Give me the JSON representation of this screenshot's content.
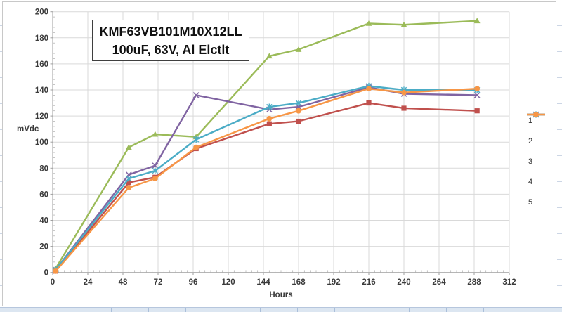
{
  "window": {
    "background": "#ffffff",
    "sheet_strip_color": "#dce6f1"
  },
  "chart_data": {
    "type": "line",
    "title_line1": "KMF63VB101M10X12LL",
    "title_line2": "100uF, 63V, Al Elctlt",
    "xlabel": "Hours",
    "ylabel": "mVdc",
    "xlim": [
      0,
      312
    ],
    "ylim": [
      0,
      200
    ],
    "x_ticks": [
      0,
      24,
      48,
      72,
      96,
      120,
      144,
      168,
      192,
      216,
      240,
      264,
      288,
      312
    ],
    "y_ticks": [
      0,
      20,
      40,
      60,
      80,
      100,
      120,
      140,
      160,
      180,
      200
    ],
    "x_minor_step": 4,
    "y_minor_step": 4,
    "grid": true,
    "legend_position": "right",
    "gridline_color": "#d9d9d9",
    "axis_color": "#9e9e9e",
    "tick_label_color": "#3a3a3a",
    "chart_border_color": "#c8c8c8",
    "x": [
      2,
      52,
      70,
      98,
      148,
      168,
      216,
      240,
      290
    ],
    "series": [
      {
        "name": "1",
        "color": "#C0504D",
        "marker": "square",
        "values": [
          1,
          69,
          73,
          95,
          114,
          116,
          130,
          126,
          124
        ]
      },
      {
        "name": "2",
        "color": "#9BBB59",
        "marker": "triangle",
        "values": [
          3,
          96,
          106,
          104,
          166,
          171,
          191,
          190,
          193
        ]
      },
      {
        "name": "3",
        "color": "#8064A2",
        "marker": "x",
        "values": [
          2,
          75,
          82,
          136,
          125,
          127,
          142,
          137,
          136
        ]
      },
      {
        "name": "4",
        "color": "#4BACC6",
        "marker": "star",
        "values": [
          2,
          72,
          78,
          102,
          127,
          130,
          143,
          140,
          140
        ]
      },
      {
        "name": "5",
        "color": "#F79646",
        "marker": "circle",
        "values": [
          1,
          65,
          72,
          96,
          118,
          124,
          141,
          138,
          141
        ]
      }
    ]
  }
}
